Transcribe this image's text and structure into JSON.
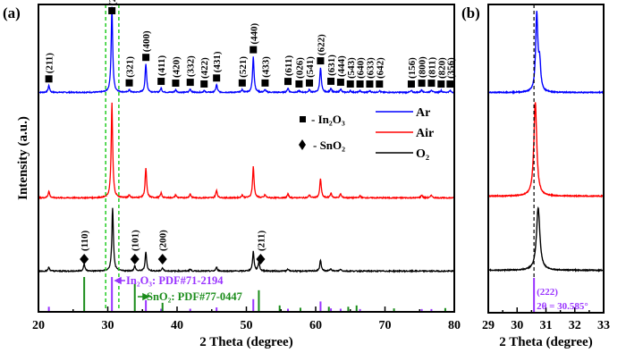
{
  "chart_data": [
    {
      "panel_label": "(a)",
      "type": "line",
      "xlabel": "2 Theta (degree)",
      "ylabel": "Intensity (a.u.)",
      "xlim": [
        20,
        80
      ],
      "xticks": [
        20,
        30,
        40,
        50,
        60,
        70,
        80
      ],
      "grid": false,
      "legend_position": "right-middle",
      "colors": {
        "Ar": "#0000ff",
        "Air": "#ff0000",
        "O2": "#000000",
        "In2O3_ref": "#9933ff",
        "SnO2_ref": "#1a8c1a",
        "guide": "#22cc22"
      },
      "legend": {
        "phase_markers": [
          {
            "symbol": "square",
            "label": "- In₂O₃"
          },
          {
            "symbol": "diamond",
            "label": "- SnO₂"
          }
        ],
        "series": [
          "Ar",
          "Air",
          "O₂"
        ]
      },
      "guide_lines_x": [
        29.7,
        31.6
      ],
      "in2o3_reflections": [
        {
          "hkl": "(211)",
          "x": 21.5
        },
        {
          "hkl": "(222)",
          "x": 30.6
        },
        {
          "hkl": "(321)",
          "x": 33.1
        },
        {
          "hkl": "(400)",
          "x": 35.5
        },
        {
          "hkl": "(411)",
          "x": 37.7
        },
        {
          "hkl": "(420)",
          "x": 39.8
        },
        {
          "hkl": "(332)",
          "x": 41.9
        },
        {
          "hkl": "(422)",
          "x": 43.9
        },
        {
          "hkl": "(431)",
          "x": 45.7
        },
        {
          "hkl": "(521)",
          "x": 49.4
        },
        {
          "hkl": "(440)",
          "x": 51.0
        },
        {
          "hkl": "(433)",
          "x": 52.7
        },
        {
          "hkl": "(611)",
          "x": 56.0
        },
        {
          "hkl": "(026)",
          "x": 57.6
        },
        {
          "hkl": "(541)",
          "x": 59.1
        },
        {
          "hkl": "(622)",
          "x": 60.7
        },
        {
          "hkl": "(631)",
          "x": 62.2
        },
        {
          "hkl": "(444)",
          "x": 63.6
        },
        {
          "hkl": "(543)",
          "x": 65.0
        },
        {
          "hkl": "(640)",
          "x": 66.4
        },
        {
          "hkl": "(633)",
          "x": 67.8
        },
        {
          "hkl": "(642)",
          "x": 69.2
        },
        {
          "hkl": "(156)",
          "x": 73.8
        },
        {
          "hkl": "(800)",
          "x": 75.3
        },
        {
          "hkl": "(811)",
          "x": 76.7
        },
        {
          "hkl": "(820)",
          "x": 78.1
        },
        {
          "hkl": "(356)",
          "x": 79.4
        }
      ],
      "sno2_reflections": [
        {
          "hkl": "(110)",
          "x": 26.6
        },
        {
          "hkl": "(101)",
          "x": 33.9
        },
        {
          "hkl": "(200)",
          "x": 37.9
        },
        {
          "hkl": "(211)",
          "x": 51.8
        }
      ],
      "series": [
        {
          "name": "Ar",
          "peaks": [
            [
              21.5,
              8
            ],
            [
              30.6,
              100
            ],
            [
              33.1,
              3
            ],
            [
              35.5,
              33
            ],
            [
              37.7,
              5
            ],
            [
              39.8,
              3
            ],
            [
              41.9,
              4
            ],
            [
              43.9,
              2
            ],
            [
              45.7,
              9
            ],
            [
              49.4,
              3
            ],
            [
              51.0,
              42
            ],
            [
              52.7,
              3
            ],
            [
              56.0,
              5
            ],
            [
              57.6,
              2
            ],
            [
              59.1,
              3
            ],
            [
              60.7,
              29
            ],
            [
              62.2,
              5
            ],
            [
              63.6,
              4
            ],
            [
              65.0,
              2
            ],
            [
              66.4,
              2
            ],
            [
              67.8,
              2
            ],
            [
              69.2,
              2
            ],
            [
              73.8,
              2
            ],
            [
              75.3,
              3
            ],
            [
              76.7,
              3
            ],
            [
              78.1,
              2
            ],
            [
              79.4,
              2
            ]
          ]
        },
        {
          "name": "Air",
          "peaks": [
            [
              21.5,
              7
            ],
            [
              30.6,
              100
            ],
            [
              33.1,
              3
            ],
            [
              35.5,
              31
            ],
            [
              37.7,
              5
            ],
            [
              39.8,
              3
            ],
            [
              41.9,
              4
            ],
            [
              45.7,
              8
            ],
            [
              49.4,
              3
            ],
            [
              51.0,
              33
            ],
            [
              52.7,
              3
            ],
            [
              56.0,
              4
            ],
            [
              59.1,
              3
            ],
            [
              60.7,
              20
            ],
            [
              62.2,
              5
            ],
            [
              63.6,
              4
            ],
            [
              66.4,
              2
            ],
            [
              75.3,
              3
            ],
            [
              76.7,
              3
            ]
          ]
        },
        {
          "name": "O₂",
          "peaks": [
            [
              21.5,
              6
            ],
            [
              26.6,
              11
            ],
            [
              30.7,
              100
            ],
            [
              33.9,
              8
            ],
            [
              35.5,
              30
            ],
            [
              37.9,
              5
            ],
            [
              41.9,
              3
            ],
            [
              45.7,
              6
            ],
            [
              51.0,
              31
            ],
            [
              51.8,
              14
            ],
            [
              56.0,
              3
            ],
            [
              60.7,
              17
            ],
            [
              62.2,
              4
            ],
            [
              63.6,
              3
            ]
          ]
        }
      ],
      "references": [
        {
          "name": "In₂O₃: PDF#71-2194",
          "sticks": [
            [
              21.5,
              10
            ],
            [
              30.6,
              100
            ],
            [
              35.5,
              30
            ],
            [
              37.7,
              4
            ],
            [
              41.9,
              4
            ],
            [
              45.7,
              8
            ],
            [
              51.0,
              33
            ],
            [
              56.0,
              4
            ],
            [
              60.7,
              26
            ],
            [
              62.2,
              5
            ],
            [
              63.6,
              4
            ],
            [
              66.4,
              3
            ],
            [
              75.3,
              3
            ],
            [
              76.7,
              3
            ]
          ]
        },
        {
          "name": "SnO₂: PDF#77-0447",
          "sticks": [
            [
              26.6,
              100
            ],
            [
              33.9,
              80
            ],
            [
              37.9,
              22
            ],
            [
              51.8,
              60
            ],
            [
              54.8,
              14
            ],
            [
              57.8,
              7
            ],
            [
              61.9,
              10
            ],
            [
              64.7,
              10
            ],
            [
              65.9,
              14
            ],
            [
              71.3,
              5
            ],
            [
              78.7,
              6
            ]
          ]
        }
      ]
    },
    {
      "panel_label": "(b)",
      "type": "line",
      "xlabel": "2 Theta (degree)",
      "xlim": [
        29,
        33
      ],
      "xticks": [
        29,
        30,
        31,
        32,
        33
      ],
      "reference_line_x": 30.585,
      "annotation": {
        "hkl": "(222)",
        "text": "2θ = 30.585°"
      },
      "series": [
        {
          "name": "Ar",
          "peaks": [
            [
              30.68,
              100
            ],
            [
              30.78,
              35
            ]
          ]
        },
        {
          "name": "Air",
          "peaks": [
            [
              30.63,
              100
            ]
          ]
        },
        {
          "name": "O₂",
          "peaks": [
            [
              30.73,
              100
            ]
          ]
        }
      ]
    }
  ]
}
